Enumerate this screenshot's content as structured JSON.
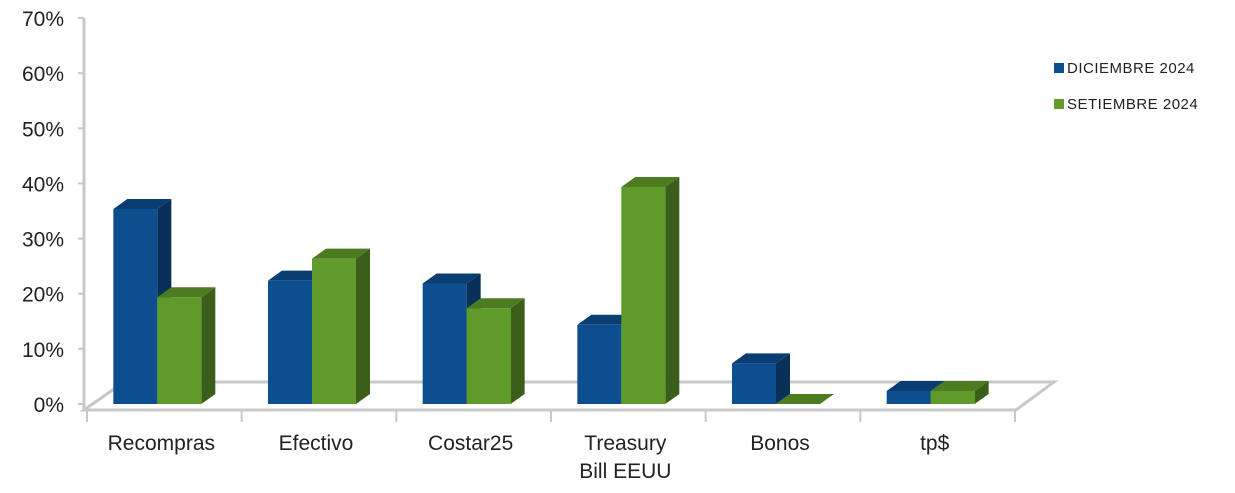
{
  "chart_data": {
    "type": "bar",
    "style": "3d-clustered-column",
    "categories": [
      "Recompras",
      "Efectivo",
      "Costar25",
      "Treasury Bill EEUU",
      "Bonos",
      "tp$"
    ],
    "category_lines": [
      [
        "Recompras"
      ],
      [
        "Efectivo"
      ],
      [
        "Costar25"
      ],
      [
        "Treasury",
        "Bill EEUU"
      ],
      [
        "Bonos"
      ],
      [
        "tp$"
      ]
    ],
    "series": [
      {
        "name": "DICIEMBRE 2024",
        "values": [
          35,
          22,
          21.5,
          14,
          7,
          2
        ],
        "color": "#0d4e8f"
      },
      {
        "name": "SETIEMBRE 2024",
        "values": [
          19,
          26,
          17,
          39,
          0,
          2
        ],
        "color": "#5f9a2a"
      }
    ],
    "y_ticks": [
      "0%",
      "10%",
      "20%",
      "30%",
      "40%",
      "50%",
      "60%",
      "70%"
    ],
    "ylim": [
      0,
      70
    ],
    "ylabel": "",
    "xlabel": "",
    "title": "",
    "grid": false,
    "legend_position": "right"
  }
}
